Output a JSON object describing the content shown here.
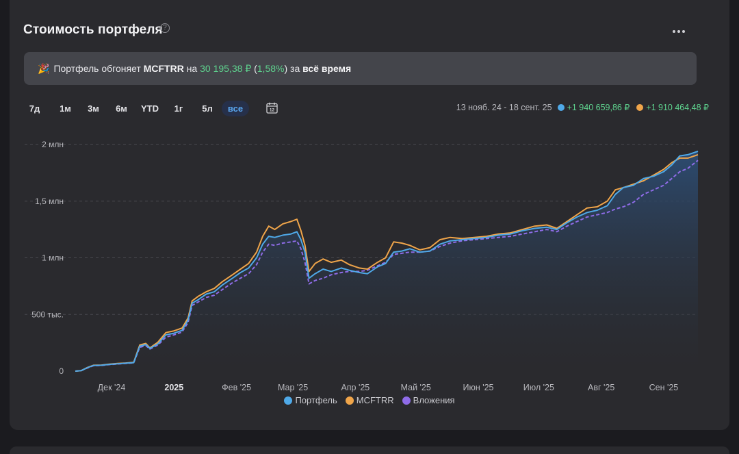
{
  "header": {
    "title": "Стоимость портфеля",
    "help_glyph": "?",
    "more_icon": "more-horizontal-icon"
  },
  "banner": {
    "emoji": "🎉",
    "prefix": "Портфель обгоняет ",
    "ticker": "MCFTRR",
    "middle": " на ",
    "amount": "30 195,38 ₽",
    "open_paren": " (",
    "percent": "1,58%",
    "close": ") за ",
    "period": "всё время"
  },
  "periods": [
    {
      "label": "7д",
      "active": false
    },
    {
      "label": "1м",
      "active": false
    },
    {
      "label": "3м",
      "active": false
    },
    {
      "label": "6м",
      "active": false
    },
    {
      "label": "YTD",
      "active": false
    },
    {
      "label": "1г",
      "active": false
    },
    {
      "label": "5л",
      "active": false
    },
    {
      "label": "все",
      "active": true
    }
  ],
  "calendar_icon": "calendar-icon",
  "summary": {
    "range": "13 нояб. 24 - 18 сент. 25",
    "portfolio_change": "+1 940 659,86 ₽",
    "benchmark_change": "+1 910 464,48 ₽"
  },
  "colors": {
    "portfolio": "#4fa9e8",
    "benchmark": "#f0a54a",
    "contributions": "#8f6ce8",
    "gain": "#5fd48f",
    "active_period": "#5aa7f0"
  },
  "chart_data": {
    "type": "line",
    "ylim": [
      0,
      2000000
    ],
    "y_ticks": [
      {
        "value": 0,
        "label": "0"
      },
      {
        "value": 500000,
        "label": "500 тыс."
      },
      {
        "value": 1000000,
        "label": "1 млн"
      },
      {
        "value": 1500000,
        "label": "1,5 млн"
      },
      {
        "value": 2000000,
        "label": "2 млн"
      }
    ],
    "x_range": [
      "2024-11-13",
      "2025-09-18"
    ],
    "x_ticks": [
      {
        "date": "2024-12-01",
        "label": "Дек '24",
        "bold": false
      },
      {
        "date": "2025-01-01",
        "label": "2025",
        "bold": true
      },
      {
        "date": "2025-02-01",
        "label": "Фев '25",
        "bold": false
      },
      {
        "date": "2025-03-01",
        "label": "Мар '25",
        "bold": false
      },
      {
        "date": "2025-04-01",
        "label": "Апр '25",
        "bold": false
      },
      {
        "date": "2025-05-01",
        "label": "Май '25",
        "bold": false
      },
      {
        "date": "2025-06-01",
        "label": "Июн '25",
        "bold": false
      },
      {
        "date": "2025-07-01",
        "label": "Июл '25",
        "bold": false
      },
      {
        "date": "2025-08-01",
        "label": "Авг '25",
        "bold": false
      },
      {
        "date": "2025-09-01",
        "label": "Сен '25",
        "bold": false
      }
    ],
    "grid": true,
    "series": [
      {
        "name": "Портфель",
        "color": "#4fa9e8",
        "style": "solid",
        "points": [
          [
            "2024-11-13",
            0
          ],
          [
            "2024-11-16",
            5000
          ],
          [
            "2024-11-19",
            30000
          ],
          [
            "2024-11-22",
            50000
          ],
          [
            "2024-11-26",
            52000
          ],
          [
            "2024-11-30",
            60000
          ],
          [
            "2024-12-04",
            65000
          ],
          [
            "2024-12-08",
            70000
          ],
          [
            "2024-12-12",
            75000
          ],
          [
            "2024-12-15",
            220000
          ],
          [
            "2024-12-18",
            235000
          ],
          [
            "2024-12-20",
            200000
          ],
          [
            "2024-12-24",
            240000
          ],
          [
            "2024-12-28",
            320000
          ],
          [
            "2025-01-01",
            335000
          ],
          [
            "2025-01-05",
            360000
          ],
          [
            "2025-01-08",
            450000
          ],
          [
            "2025-01-10",
            600000
          ],
          [
            "2025-01-13",
            630000
          ],
          [
            "2025-01-17",
            680000
          ],
          [
            "2025-01-21",
            700000
          ],
          [
            "2025-01-25",
            760000
          ],
          [
            "2025-01-30",
            820000
          ],
          [
            "2025-02-03",
            870000
          ],
          [
            "2025-02-07",
            910000
          ],
          [
            "2025-02-11",
            1000000
          ],
          [
            "2025-02-14",
            1120000
          ],
          [
            "2025-02-17",
            1190000
          ],
          [
            "2025-02-20",
            1180000
          ],
          [
            "2025-02-24",
            1200000
          ],
          [
            "2025-02-28",
            1210000
          ],
          [
            "2025-03-03",
            1230000
          ],
          [
            "2025-03-05",
            1160000
          ],
          [
            "2025-03-07",
            1050000
          ],
          [
            "2025-03-09",
            820000
          ],
          [
            "2025-03-12",
            860000
          ],
          [
            "2025-03-16",
            900000
          ],
          [
            "2025-03-20",
            880000
          ],
          [
            "2025-03-25",
            910000
          ],
          [
            "2025-03-29",
            890000
          ],
          [
            "2025-04-03",
            870000
          ],
          [
            "2025-04-07",
            860000
          ],
          [
            "2025-04-12",
            920000
          ],
          [
            "2025-04-16",
            950000
          ],
          [
            "2025-04-20",
            1050000
          ],
          [
            "2025-04-24",
            1060000
          ],
          [
            "2025-04-28",
            1080000
          ],
          [
            "2025-05-03",
            1050000
          ],
          [
            "2025-05-08",
            1060000
          ],
          [
            "2025-05-13",
            1120000
          ],
          [
            "2025-05-18",
            1150000
          ],
          [
            "2025-05-24",
            1160000
          ],
          [
            "2025-05-30",
            1170000
          ],
          [
            "2025-06-05",
            1180000
          ],
          [
            "2025-06-11",
            1200000
          ],
          [
            "2025-06-17",
            1210000
          ],
          [
            "2025-06-23",
            1240000
          ],
          [
            "2025-06-29",
            1260000
          ],
          [
            "2025-07-05",
            1270000
          ],
          [
            "2025-07-10",
            1250000
          ],
          [
            "2025-07-15",
            1310000
          ],
          [
            "2025-07-20",
            1360000
          ],
          [
            "2025-07-25",
            1400000
          ],
          [
            "2025-07-30",
            1420000
          ],
          [
            "2025-08-04",
            1460000
          ],
          [
            "2025-08-08",
            1560000
          ],
          [
            "2025-08-12",
            1620000
          ],
          [
            "2025-08-17",
            1640000
          ],
          [
            "2025-08-22",
            1700000
          ],
          [
            "2025-08-27",
            1720000
          ],
          [
            "2025-09-01",
            1760000
          ],
          [
            "2025-09-05",
            1820000
          ],
          [
            "2025-09-09",
            1900000
          ],
          [
            "2025-09-13",
            1910000
          ],
          [
            "2025-09-18",
            1940000
          ]
        ]
      },
      {
        "name": "MCFTRR",
        "color": "#f0a54a",
        "style": "solid",
        "points": [
          [
            "2024-11-13",
            0
          ],
          [
            "2024-11-16",
            5000
          ],
          [
            "2024-11-19",
            32000
          ],
          [
            "2024-11-22",
            52000
          ],
          [
            "2024-11-26",
            54000
          ],
          [
            "2024-11-30",
            62000
          ],
          [
            "2024-12-04",
            68000
          ],
          [
            "2024-12-08",
            72000
          ],
          [
            "2024-12-12",
            78000
          ],
          [
            "2024-12-15",
            230000
          ],
          [
            "2024-12-18",
            245000
          ],
          [
            "2024-12-20",
            205000
          ],
          [
            "2024-12-24",
            255000
          ],
          [
            "2024-12-28",
            340000
          ],
          [
            "2025-01-01",
            355000
          ],
          [
            "2025-01-05",
            380000
          ],
          [
            "2025-01-08",
            470000
          ],
          [
            "2025-01-10",
            620000
          ],
          [
            "2025-01-13",
            660000
          ],
          [
            "2025-01-17",
            700000
          ],
          [
            "2025-01-21",
            730000
          ],
          [
            "2025-01-25",
            790000
          ],
          [
            "2025-01-30",
            850000
          ],
          [
            "2025-02-03",
            900000
          ],
          [
            "2025-02-07",
            950000
          ],
          [
            "2025-02-11",
            1050000
          ],
          [
            "2025-02-14",
            1190000
          ],
          [
            "2025-02-17",
            1280000
          ],
          [
            "2025-02-20",
            1250000
          ],
          [
            "2025-02-24",
            1300000
          ],
          [
            "2025-02-28",
            1320000
          ],
          [
            "2025-03-03",
            1340000
          ],
          [
            "2025-03-05",
            1240000
          ],
          [
            "2025-03-07",
            1110000
          ],
          [
            "2025-03-09",
            880000
          ],
          [
            "2025-03-12",
            950000
          ],
          [
            "2025-03-16",
            990000
          ],
          [
            "2025-03-20",
            960000
          ],
          [
            "2025-03-25",
            980000
          ],
          [
            "2025-03-29",
            940000
          ],
          [
            "2025-04-03",
            910000
          ],
          [
            "2025-04-07",
            900000
          ],
          [
            "2025-04-12",
            960000
          ],
          [
            "2025-04-16",
            1000000
          ],
          [
            "2025-04-20",
            1140000
          ],
          [
            "2025-04-24",
            1130000
          ],
          [
            "2025-04-28",
            1110000
          ],
          [
            "2025-05-03",
            1070000
          ],
          [
            "2025-05-08",
            1090000
          ],
          [
            "2025-05-13",
            1160000
          ],
          [
            "2025-05-18",
            1180000
          ],
          [
            "2025-05-24",
            1170000
          ],
          [
            "2025-05-30",
            1180000
          ],
          [
            "2025-06-05",
            1190000
          ],
          [
            "2025-06-11",
            1210000
          ],
          [
            "2025-06-17",
            1220000
          ],
          [
            "2025-06-23",
            1250000
          ],
          [
            "2025-06-29",
            1280000
          ],
          [
            "2025-07-05",
            1290000
          ],
          [
            "2025-07-10",
            1260000
          ],
          [
            "2025-07-15",
            1320000
          ],
          [
            "2025-07-20",
            1380000
          ],
          [
            "2025-07-25",
            1440000
          ],
          [
            "2025-07-30",
            1450000
          ],
          [
            "2025-08-04",
            1500000
          ],
          [
            "2025-08-08",
            1600000
          ],
          [
            "2025-08-12",
            1620000
          ],
          [
            "2025-08-17",
            1650000
          ],
          [
            "2025-08-22",
            1680000
          ],
          [
            "2025-08-27",
            1730000
          ],
          [
            "2025-09-01",
            1780000
          ],
          [
            "2025-09-05",
            1840000
          ],
          [
            "2025-09-09",
            1880000
          ],
          [
            "2025-09-13",
            1880000
          ],
          [
            "2025-09-18",
            1910000
          ]
        ]
      },
      {
        "name": "Вложения",
        "color": "#8f6ce8",
        "style": "dashed",
        "points": [
          [
            "2024-11-13",
            0
          ],
          [
            "2024-11-16",
            5000
          ],
          [
            "2024-11-19",
            28000
          ],
          [
            "2024-11-22",
            48000
          ],
          [
            "2024-11-26",
            50000
          ],
          [
            "2024-11-30",
            58000
          ],
          [
            "2024-12-04",
            63000
          ],
          [
            "2024-12-08",
            68000
          ],
          [
            "2024-12-12",
            73000
          ],
          [
            "2024-12-15",
            210000
          ],
          [
            "2024-12-18",
            225000
          ],
          [
            "2024-12-20",
            195000
          ],
          [
            "2024-12-24",
            230000
          ],
          [
            "2024-12-28",
            300000
          ],
          [
            "2025-01-01",
            320000
          ],
          [
            "2025-01-05",
            345000
          ],
          [
            "2025-01-08",
            430000
          ],
          [
            "2025-01-10",
            580000
          ],
          [
            "2025-01-13",
            610000
          ],
          [
            "2025-01-17",
            650000
          ],
          [
            "2025-01-21",
            670000
          ],
          [
            "2025-01-25",
            720000
          ],
          [
            "2025-01-30",
            780000
          ],
          [
            "2025-02-03",
            820000
          ],
          [
            "2025-02-07",
            860000
          ],
          [
            "2025-02-11",
            940000
          ],
          [
            "2025-02-14",
            1050000
          ],
          [
            "2025-02-17",
            1120000
          ],
          [
            "2025-02-20",
            1110000
          ],
          [
            "2025-02-24",
            1130000
          ],
          [
            "2025-02-28",
            1140000
          ],
          [
            "2025-03-03",
            1150000
          ],
          [
            "2025-03-05",
            1080000
          ],
          [
            "2025-03-07",
            960000
          ],
          [
            "2025-03-09",
            770000
          ],
          [
            "2025-03-12",
            800000
          ],
          [
            "2025-03-16",
            820000
          ],
          [
            "2025-03-20",
            850000
          ],
          [
            "2025-03-25",
            870000
          ],
          [
            "2025-03-29",
            880000
          ],
          [
            "2025-04-03",
            880000
          ],
          [
            "2025-04-07",
            890000
          ],
          [
            "2025-04-12",
            930000
          ],
          [
            "2025-04-16",
            960000
          ],
          [
            "2025-04-20",
            1030000
          ],
          [
            "2025-04-24",
            1040000
          ],
          [
            "2025-04-28",
            1050000
          ],
          [
            "2025-05-03",
            1050000
          ],
          [
            "2025-05-08",
            1060000
          ],
          [
            "2025-05-13",
            1100000
          ],
          [
            "2025-05-18",
            1130000
          ],
          [
            "2025-05-24",
            1150000
          ],
          [
            "2025-05-30",
            1160000
          ],
          [
            "2025-06-05",
            1170000
          ],
          [
            "2025-06-11",
            1180000
          ],
          [
            "2025-06-17",
            1190000
          ],
          [
            "2025-06-23",
            1210000
          ],
          [
            "2025-06-29",
            1230000
          ],
          [
            "2025-07-05",
            1250000
          ],
          [
            "2025-07-10",
            1230000
          ],
          [
            "2025-07-15",
            1280000
          ],
          [
            "2025-07-20",
            1320000
          ],
          [
            "2025-07-25",
            1360000
          ],
          [
            "2025-07-30",
            1380000
          ],
          [
            "2025-08-04",
            1400000
          ],
          [
            "2025-08-08",
            1430000
          ],
          [
            "2025-08-12",
            1450000
          ],
          [
            "2025-08-17",
            1490000
          ],
          [
            "2025-08-22",
            1560000
          ],
          [
            "2025-08-27",
            1600000
          ],
          [
            "2025-09-01",
            1640000
          ],
          [
            "2025-09-05",
            1700000
          ],
          [
            "2025-09-09",
            1760000
          ],
          [
            "2025-09-13",
            1790000
          ],
          [
            "2025-09-18",
            1860000
          ]
        ]
      }
    ]
  },
  "legend": [
    {
      "label": "Портфель",
      "color": "#4fa9e8"
    },
    {
      "label": "MCFTRR",
      "color": "#f0a54a"
    },
    {
      "label": "Вложения",
      "color": "#8f6ce8"
    }
  ]
}
